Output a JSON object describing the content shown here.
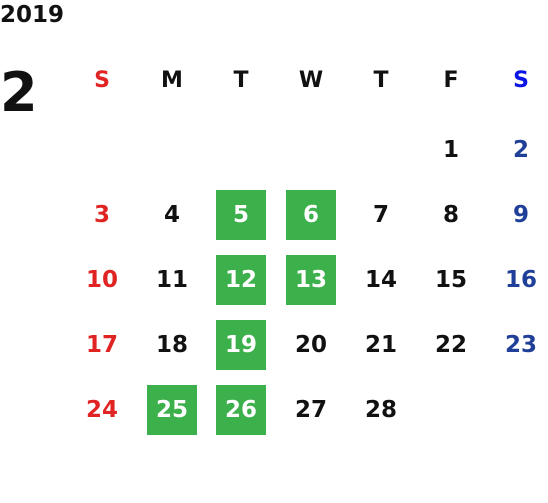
{
  "year": "2019",
  "month": "2",
  "weekdays": [
    "S",
    "M",
    "T",
    "W",
    "T",
    "F",
    "S"
  ],
  "weeks": [
    [
      null,
      null,
      null,
      null,
      null,
      {
        "day": "1",
        "highlight": false
      },
      {
        "day": "2",
        "highlight": false
      }
    ],
    [
      {
        "day": "3",
        "highlight": false
      },
      {
        "day": "4",
        "highlight": false
      },
      {
        "day": "5",
        "highlight": true
      },
      {
        "day": "6",
        "highlight": true
      },
      {
        "day": "7",
        "highlight": false
      },
      {
        "day": "8",
        "highlight": false
      },
      {
        "day": "9",
        "highlight": false
      }
    ],
    [
      {
        "day": "10",
        "highlight": false
      },
      {
        "day": "11",
        "highlight": false
      },
      {
        "day": "12",
        "highlight": true
      },
      {
        "day": "13",
        "highlight": true
      },
      {
        "day": "14",
        "highlight": false
      },
      {
        "day": "15",
        "highlight": false
      },
      {
        "day": "16",
        "highlight": false
      }
    ],
    [
      {
        "day": "17",
        "highlight": false
      },
      {
        "day": "18",
        "highlight": false
      },
      {
        "day": "19",
        "highlight": true
      },
      {
        "day": "20",
        "highlight": false
      },
      {
        "day": "21",
        "highlight": false
      },
      {
        "day": "22",
        "highlight": false
      },
      {
        "day": "23",
        "highlight": false
      }
    ],
    [
      {
        "day": "24",
        "highlight": false
      },
      {
        "day": "25",
        "highlight": true
      },
      {
        "day": "26",
        "highlight": true
      },
      {
        "day": "27",
        "highlight": false
      },
      {
        "day": "28",
        "highlight": false
      },
      null,
      null
    ]
  ],
  "colors": {
    "weekday": "#111111",
    "sunday": "#e02424",
    "saturday_header": "#0a14e6",
    "saturday": "#1f3f99",
    "highlight_bg": "#3bb04b",
    "highlight_text": "#ffffff"
  }
}
